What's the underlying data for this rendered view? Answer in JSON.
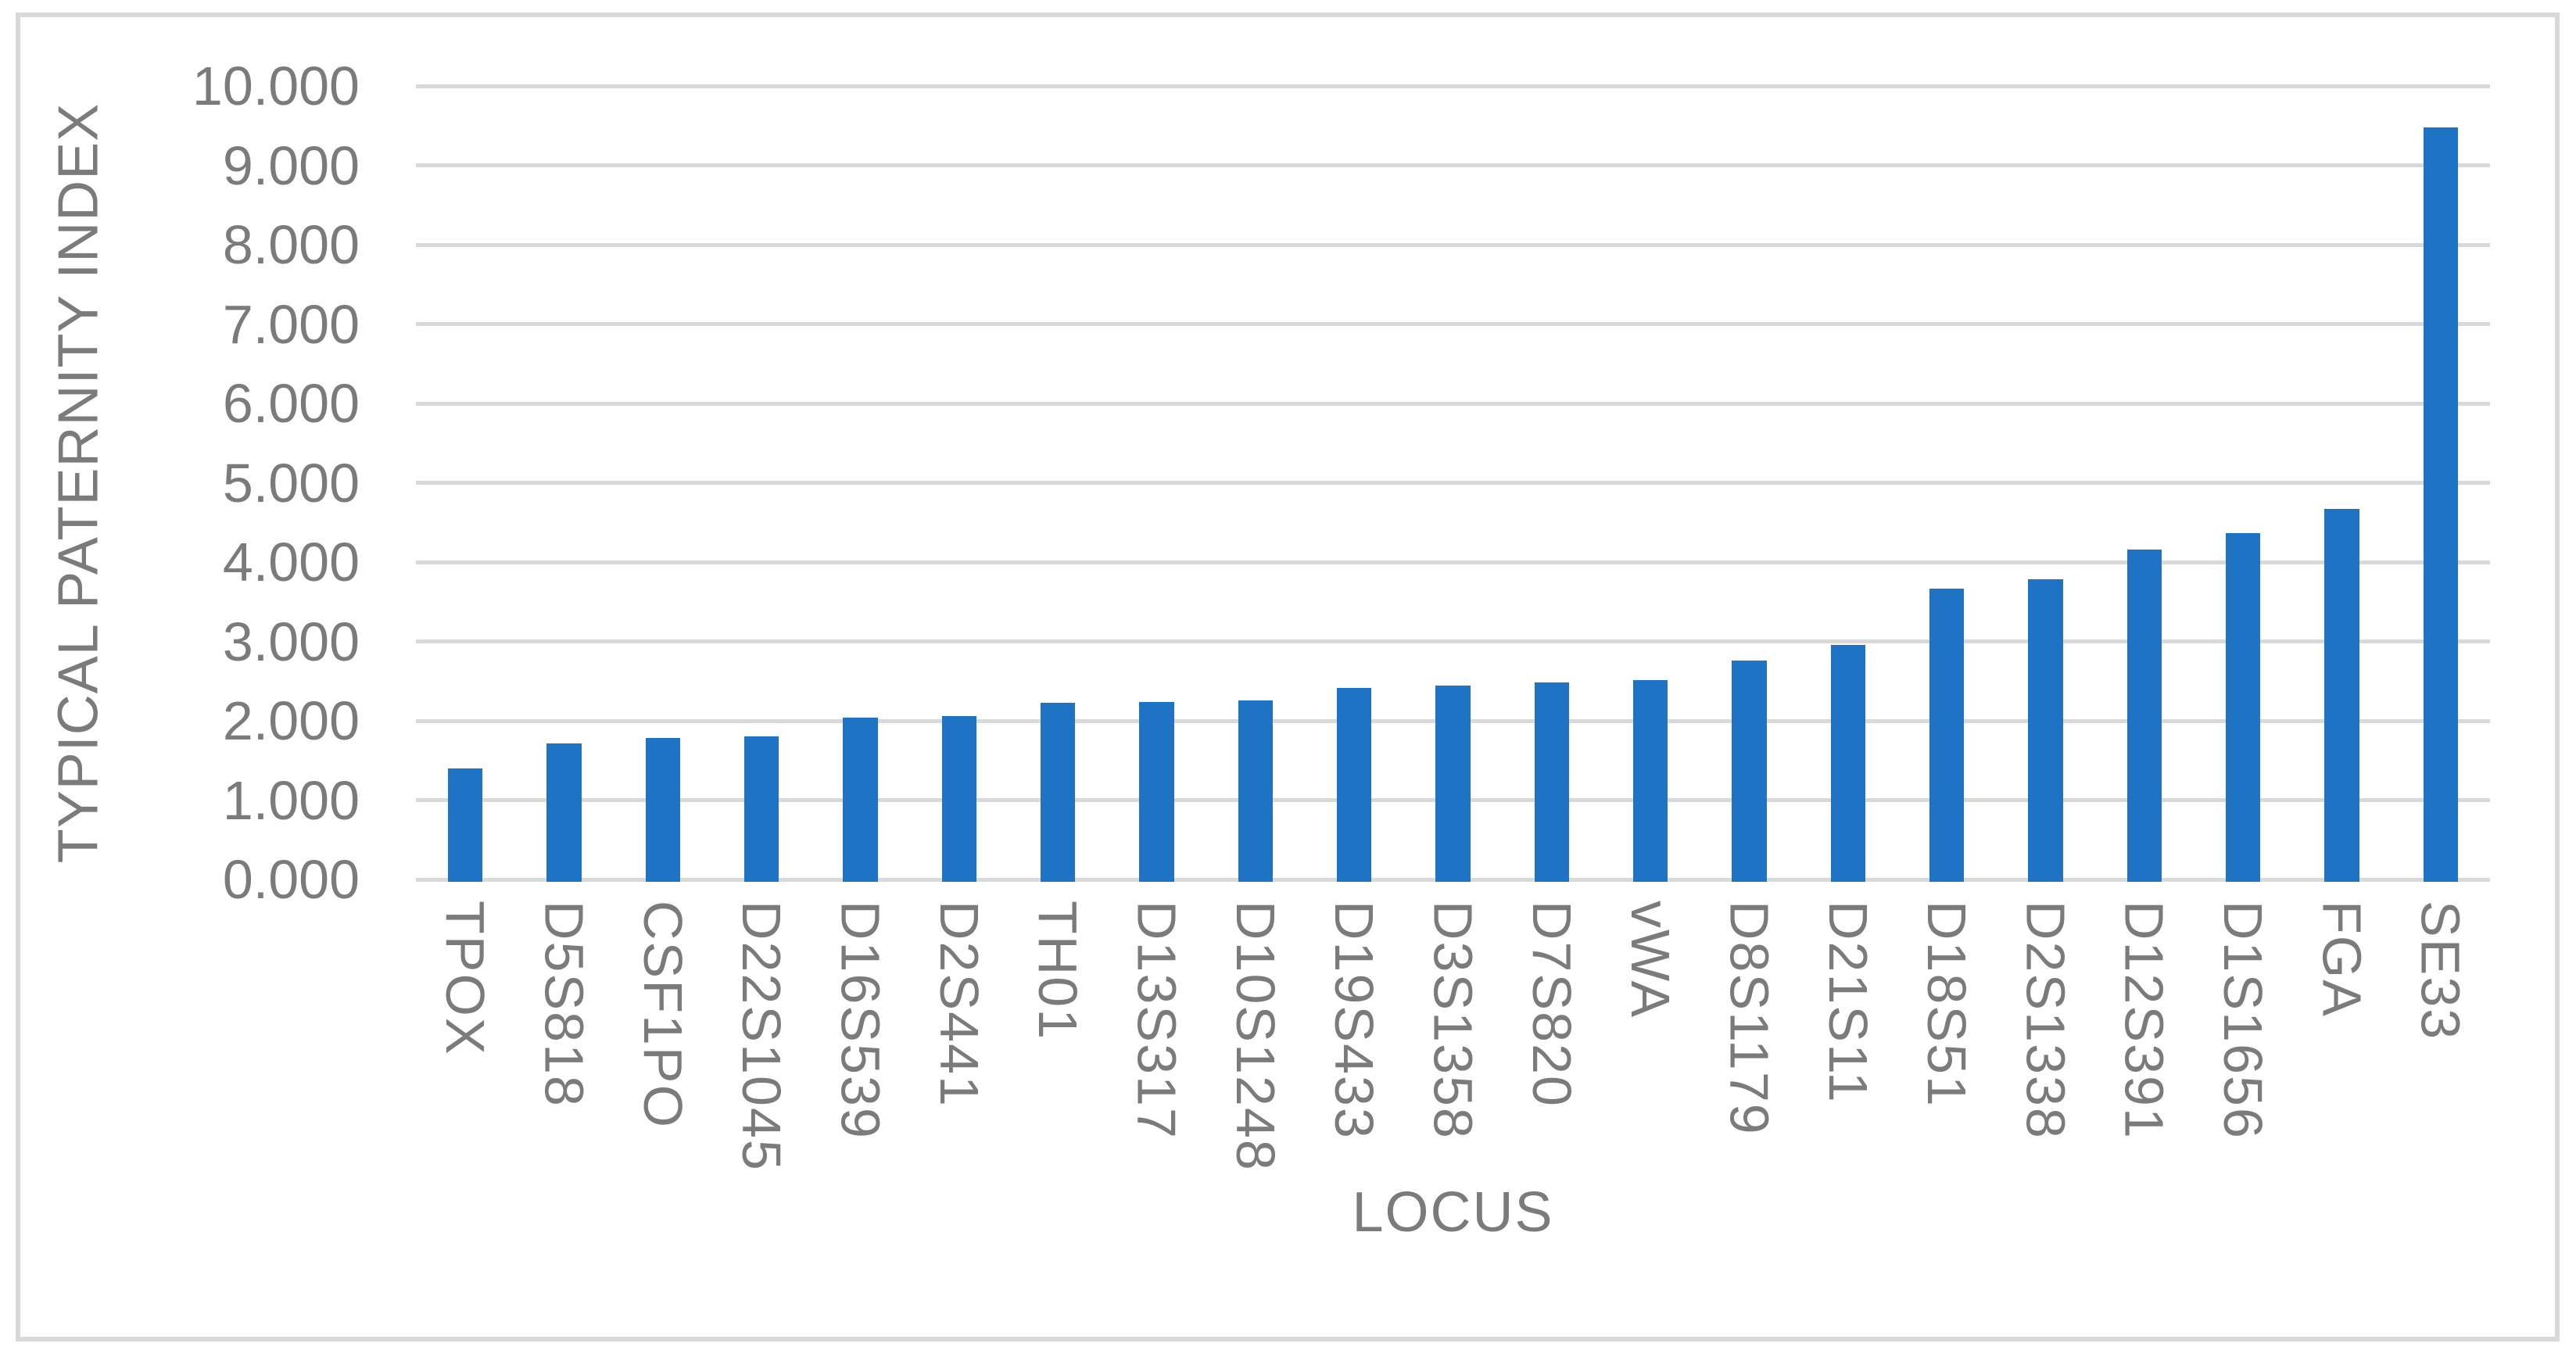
{
  "chart_data": {
    "type": "bar",
    "title": "",
    "xlabel": "LOCUS",
    "ylabel": "TYPICAL PATERNITY INDEX",
    "categories": [
      "TPOX",
      "D5S818",
      "CSF1PO",
      "D22S1045",
      "D16S539",
      "D2S441",
      "TH01",
      "D13S317",
      "D10S1248",
      "D19S433",
      "D3S1358",
      "D7S820",
      "vWA",
      "D8S1179",
      "D21S11",
      "D18S51",
      "D2S1338",
      "D12S391",
      "D1S1656",
      "FGA",
      "SE33"
    ],
    "values": [
      1.4,
      1.71,
      1.78,
      1.8,
      2.04,
      2.06,
      2.23,
      2.24,
      2.26,
      2.41,
      2.44,
      2.48,
      2.51,
      2.76,
      2.96,
      3.67,
      3.78,
      4.16,
      4.36,
      4.67,
      9.48
    ],
    "ylim": [
      0,
      10
    ],
    "ytick_step": 1,
    "ytick_decimals": 3,
    "ytick_labels": [
      "0.000",
      "1.000",
      "2.000",
      "3.000",
      "4.000",
      "5.000",
      "6.000",
      "7.000",
      "8.000",
      "9.000",
      "10.000"
    ],
    "grid": true,
    "legend_position": "none",
    "bar_color": "#1e73c5",
    "gridline_color": "#d9d9d9",
    "border_color": "#d9d9d9",
    "text_color": "#7b7b7b"
  }
}
